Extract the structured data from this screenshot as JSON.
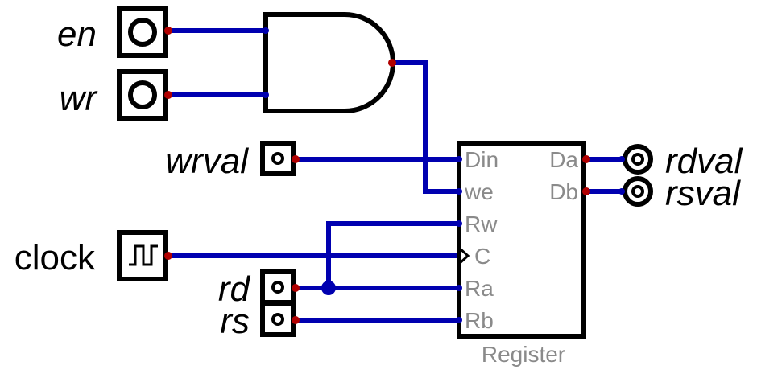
{
  "inputs": {
    "en": "en",
    "wr": "wr",
    "wrval": "wrval",
    "clock": "clock",
    "rd": "rd",
    "rs": "rs"
  },
  "outputs": {
    "rdval": "rdval",
    "rsval": "rsval"
  },
  "register": {
    "name": "Register",
    "pins": {
      "din": "Din",
      "we": "we",
      "rw": "Rw",
      "c": "C",
      "ra": "Ra",
      "rb": "Rb",
      "da": "Da",
      "db": "Db"
    }
  },
  "colors": {
    "wire": "#0000b0",
    "pin_dot": "#b00000",
    "junction": "#0000b0",
    "pin_label": "#8a8a8a"
  },
  "icons": {
    "and_gate": "and-gate-icon",
    "clock_source": "clock-square-wave-icon",
    "input_button": "input-pin-icon",
    "output_probe": "output-probe-icon"
  }
}
